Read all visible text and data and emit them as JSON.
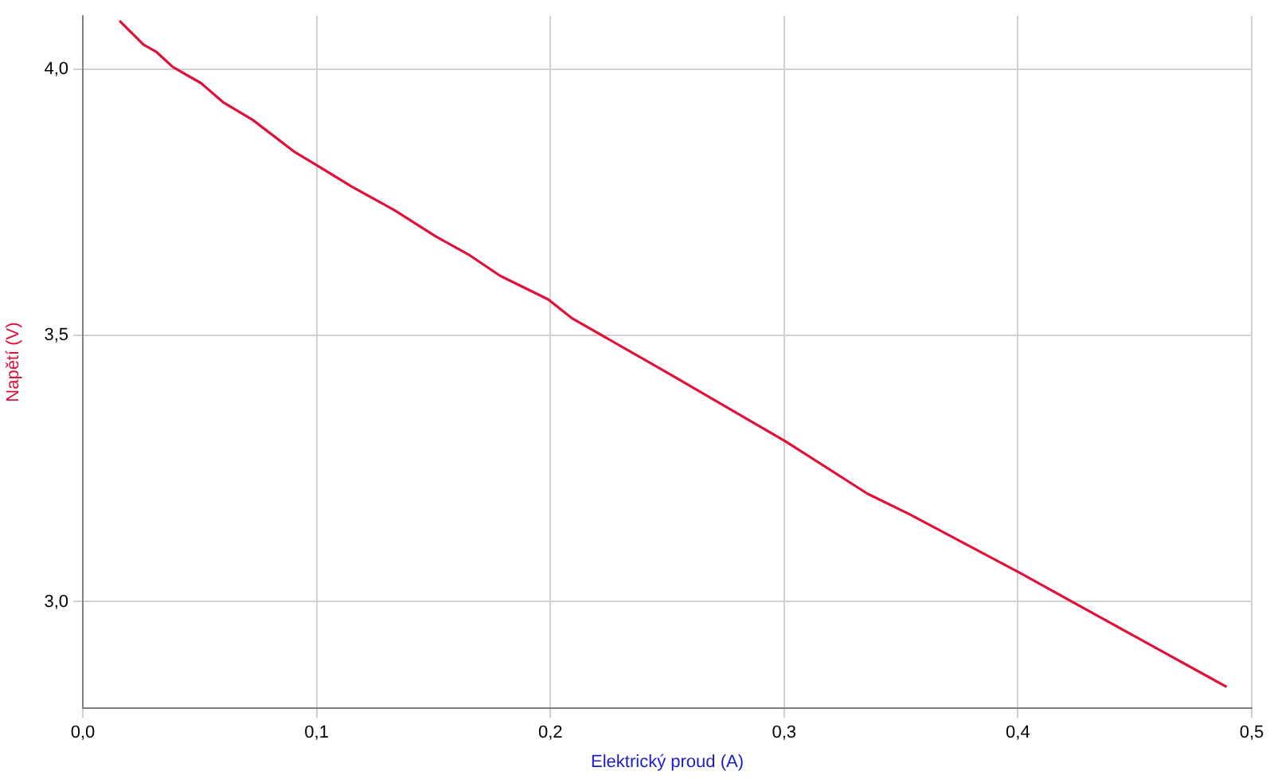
{
  "chart_data": {
    "type": "line",
    "xlabel": "Elektrický proud (A)",
    "ylabel": "Napětí (V)",
    "x": [
      0.0157,
      0.026,
      0.0316,
      0.0385,
      0.0505,
      0.06,
      0.0726,
      0.0908,
      0.0999,
      0.1148,
      0.133,
      0.151,
      0.165,
      0.1785,
      0.199,
      0.209,
      0.25,
      0.3003,
      0.3356,
      0.3538,
      0.4005,
      0.45,
      0.4893
    ],
    "series": [
      {
        "color": "#e0103a",
        "values": [
          4.091,
          4.046,
          4.032,
          4.004,
          3.974,
          3.938,
          3.905,
          3.844,
          3.82,
          3.78,
          3.736,
          3.686,
          3.652,
          3.612,
          3.568,
          3.533,
          3.43,
          3.302,
          3.203,
          3.164,
          3.055,
          2.935,
          2.84
        ]
      }
    ],
    "xlim": [
      0,
      0.5
    ],
    "ylim": [
      2.8,
      4.1
    ],
    "xticks": [
      {
        "value": 0,
        "label": "0,0"
      },
      {
        "value": 0.1,
        "label": "0,1"
      },
      {
        "value": 0.2,
        "label": "0,2"
      },
      {
        "value": 0.3,
        "label": "0,3"
      },
      {
        "value": 0.4,
        "label": "0,4"
      },
      {
        "value": 0.5,
        "label": "0,5"
      }
    ],
    "yticks": [
      {
        "value": 3,
        "label": "3,0"
      },
      {
        "value": 3.5,
        "label": "3,5"
      },
      {
        "value": 4,
        "label": "4,0"
      }
    ],
    "grid": true,
    "legend": false,
    "marker": "none",
    "line_style": "solid"
  }
}
